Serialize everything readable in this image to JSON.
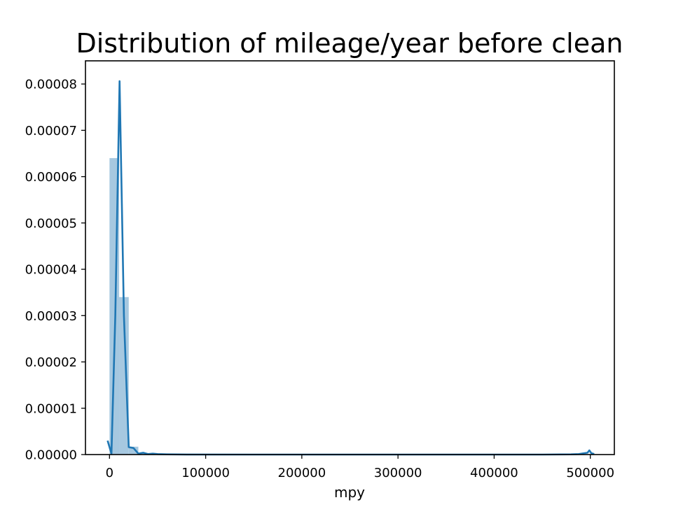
{
  "chart_data": {
    "type": "bar",
    "title": "Distribution of mileage/year before clean",
    "xlabel": "mpy",
    "ylabel": "",
    "xlim": [
      -25000,
      525000
    ],
    "ylim": [
      0,
      8.5e-05
    ],
    "xticks": [
      0,
      100000,
      200000,
      300000,
      400000,
      500000
    ],
    "xtick_labels": [
      "0",
      "100000",
      "200000",
      "300000",
      "400000",
      "500000"
    ],
    "yticks": [
      0,
      1e-05,
      2e-05,
      3e-05,
      4e-05,
      5e-05,
      6e-05,
      7e-05,
      8e-05
    ],
    "ytick_labels": [
      "0.00000",
      "0.00001",
      "0.00002",
      "0.00003",
      "0.00004",
      "0.00005",
      "0.00006",
      "0.00007",
      "0.00008"
    ],
    "grid": false,
    "legend": "none",
    "colors": {
      "hist": "#a6c8e0",
      "kde": "#1f77b4"
    },
    "histogram": {
      "bin_width": 10000,
      "bins": [
        {
          "x0": 0,
          "x1": 10000,
          "density": 6.4e-05
        },
        {
          "x0": 10000,
          "x1": 20000,
          "density": 3.4e-05
        },
        {
          "x0": 20000,
          "x1": 30000,
          "density": 1.7e-06
        },
        {
          "x0": 30000,
          "x1": 40000,
          "density": 3e-07
        },
        {
          "x0": 40000,
          "x1": 50000,
          "density": 1e-07
        },
        {
          "x0": 490000,
          "x1": 500000,
          "density": 5e-08
        }
      ]
    },
    "kde": {
      "x": [
        -2000,
        2000,
        6000,
        10500,
        15000,
        20000,
        25000,
        30000,
        35000,
        40000,
        45000,
        50000,
        60000,
        80000,
        150000,
        300000,
        450000,
        480000,
        488000,
        494000,
        497000,
        499000,
        501000,
        504000
      ],
      "y": [
        3e-06,
        2e-07,
        3e-05,
        8.06e-05,
        3e-05,
        1.6e-06,
        1.4e-06,
        2e-07,
        4e-07,
        1e-07,
        2e-07,
        1e-07,
        5e-08,
        2e-08,
        0,
        0,
        0,
        5e-08,
        1e-07,
        3e-07,
        4e-07,
        9e-07,
        3e-07,
        1e-07
      ]
    }
  }
}
